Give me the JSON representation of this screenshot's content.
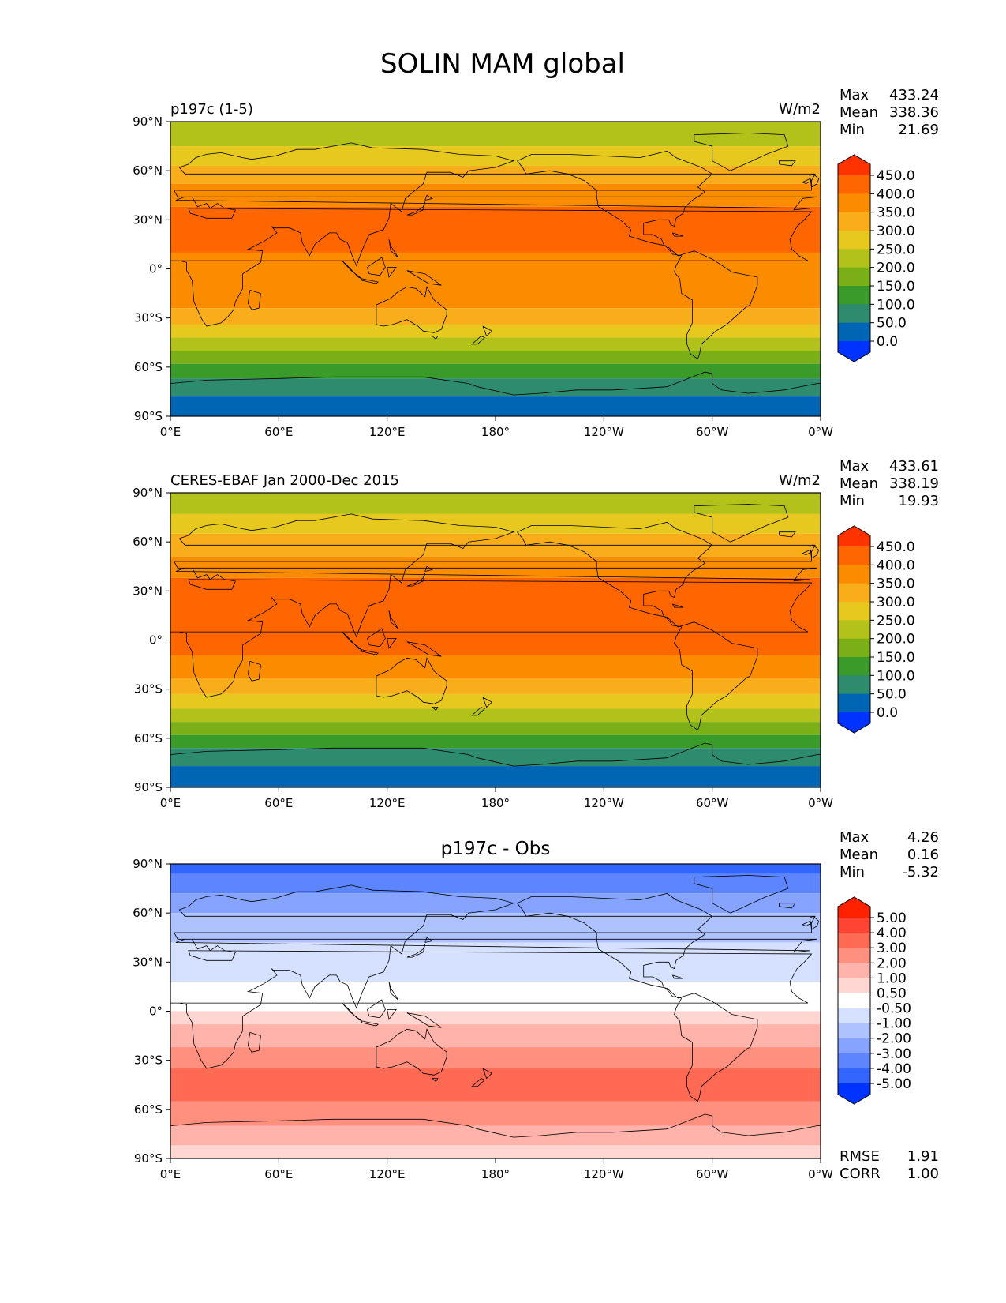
{
  "title": "SOLIN MAM global",
  "x_ticks": [
    "0°E",
    "60°E",
    "120°E",
    "180°",
    "120°W",
    "60°W",
    "0°W"
  ],
  "y_ticks": [
    "90°N",
    "60°N",
    "30°N",
    "0°",
    "30°S",
    "60°S",
    "90°S"
  ],
  "colors": {
    "levels_field": [
      "#0033ff",
      "#0066b3",
      "#2e8b6e",
      "#3a9a2a",
      "#7aaf18",
      "#b3c21a",
      "#e6c81e",
      "#f9ad1a",
      "#fb8c00",
      "#ff6600",
      "#ff3300"
    ],
    "levels_diff": [
      "#0033ff",
      "#3366ff",
      "#5c85ff",
      "#85a3ff",
      "#adc2ff",
      "#d6e0ff",
      "#ffffff",
      "#ffd6d1",
      "#ffb3aa",
      "#ff9080",
      "#ff6a55",
      "#ff4433",
      "#ff2200"
    ],
    "land_outline": "#000000"
  },
  "chart_data": [
    {
      "type": "heatmap",
      "title_left": "p197c (1-5)",
      "units": "W/m2",
      "stats": [
        {
          "label": "Max",
          "value": "433.24"
        },
        {
          "label": "Mean",
          "value": "338.36"
        },
        {
          "label": "Min",
          "value": "21.69"
        }
      ],
      "colorbar_labels": [
        "450.0",
        "400.0",
        "350.0",
        "300.0",
        "250.0",
        "200.0",
        "150.0",
        "100.0",
        "50.0",
        "0.0"
      ],
      "colorbar_extend": "both",
      "xlim": [
        0,
        360
      ],
      "ylim": [
        -90,
        90
      ],
      "bands": [
        {
          "lat_min": 75,
          "lat_max": 90,
          "value": 225
        },
        {
          "lat_min": 63,
          "lat_max": 75,
          "value": 275
        },
        {
          "lat_min": 52,
          "lat_max": 63,
          "value": 325
        },
        {
          "lat_min": 38,
          "lat_max": 52,
          "value": 375
        },
        {
          "lat_min": -10,
          "lat_max": 38,
          "value": 425
        },
        {
          "lat_min": -24,
          "lat_max": 10,
          "value": 375
        },
        {
          "lat_min": -34,
          "lat_max": -24,
          "value": 325
        },
        {
          "lat_min": -42,
          "lat_max": -34,
          "value": 275
        },
        {
          "lat_min": -50,
          "lat_max": -42,
          "value": 225
        },
        {
          "lat_min": -58,
          "lat_max": -50,
          "value": 175
        },
        {
          "lat_min": -67,
          "lat_max": -58,
          "value": 125
        },
        {
          "lat_min": -78,
          "lat_max": -67,
          "value": 75
        },
        {
          "lat_min": -90,
          "lat_max": -78,
          "value": 25
        }
      ]
    },
    {
      "type": "heatmap",
      "title_left": "CERES-EBAF Jan 2000-Dec 2015",
      "units": "W/m2",
      "stats": [
        {
          "label": "Max",
          "value": "433.61"
        },
        {
          "label": "Mean",
          "value": "338.19"
        },
        {
          "label": "Min",
          "value": "19.93"
        }
      ],
      "colorbar_labels": [
        "450.0",
        "400.0",
        "350.0",
        "300.0",
        "250.0",
        "200.0",
        "150.0",
        "100.0",
        "50.0",
        "0.0"
      ],
      "colorbar_extend": "both",
      "xlim": [
        0,
        360
      ],
      "ylim": [
        -90,
        90
      ],
      "bands": [
        {
          "lat_min": 77,
          "lat_max": 90,
          "value": 225
        },
        {
          "lat_min": 65,
          "lat_max": 77,
          "value": 275
        },
        {
          "lat_min": 51,
          "lat_max": 65,
          "value": 325
        },
        {
          "lat_min": 38,
          "lat_max": 51,
          "value": 375
        },
        {
          "lat_min": -9,
          "lat_max": 38,
          "value": 425
        },
        {
          "lat_min": -23,
          "lat_max": -9,
          "value": 375
        },
        {
          "lat_min": -33,
          "lat_max": -23,
          "value": 325
        },
        {
          "lat_min": -42,
          "lat_max": -33,
          "value": 275
        },
        {
          "lat_min": -50,
          "lat_max": -42,
          "value": 225
        },
        {
          "lat_min": -58,
          "lat_max": -50,
          "value": 175
        },
        {
          "lat_min": -66,
          "lat_max": -58,
          "value": 125
        },
        {
          "lat_min": -77,
          "lat_max": -66,
          "value": 75
        },
        {
          "lat_min": -90,
          "lat_max": -77,
          "value": 25
        }
      ]
    },
    {
      "type": "heatmap",
      "title_center": "p197c - Obs",
      "stats": [
        {
          "label": "Max",
          "value": "4.26"
        },
        {
          "label": "Mean",
          "value": "0.16"
        },
        {
          "label": "Min",
          "value": "-5.32"
        }
      ],
      "colorbar_labels": [
        "5.00",
        "4.00",
        "3.00",
        "2.00",
        "1.00",
        "0.50",
        "-0.50",
        "-1.00",
        "-2.00",
        "-3.00",
        "-4.00",
        "-5.00"
      ],
      "colorbar_extend": "both",
      "xlim": [
        0,
        360
      ],
      "ylim": [
        -90,
        90
      ],
      "bands": [
        {
          "lat_min": 84,
          "lat_max": 90,
          "value": -4.5
        },
        {
          "lat_min": 72,
          "lat_max": 84,
          "value": -3.5
        },
        {
          "lat_min": 60,
          "lat_max": 72,
          "value": -2.5
        },
        {
          "lat_min": 42,
          "lat_max": 60,
          "value": -1.5
        },
        {
          "lat_min": 18,
          "lat_max": 42,
          "value": -0.75
        },
        {
          "lat_min": 0,
          "lat_max": 18,
          "value": 0
        },
        {
          "lat_min": -8,
          "lat_max": 0,
          "value": 0.75
        },
        {
          "lat_min": -22,
          "lat_max": -8,
          "value": 1.5
        },
        {
          "lat_min": -35,
          "lat_max": -22,
          "value": 2.5
        },
        {
          "lat_min": -55,
          "lat_max": -35,
          "value": 3.0
        },
        {
          "lat_min": -70,
          "lat_max": -55,
          "value": 2.5
        },
        {
          "lat_min": -82,
          "lat_max": -70,
          "value": 1.5
        },
        {
          "lat_min": -90,
          "lat_max": -82,
          "value": 0.75
        }
      ],
      "footer_stats": [
        {
          "label": "RMSE",
          "value": "1.91"
        },
        {
          "label": "CORR",
          "value": "1.00"
        }
      ]
    }
  ]
}
